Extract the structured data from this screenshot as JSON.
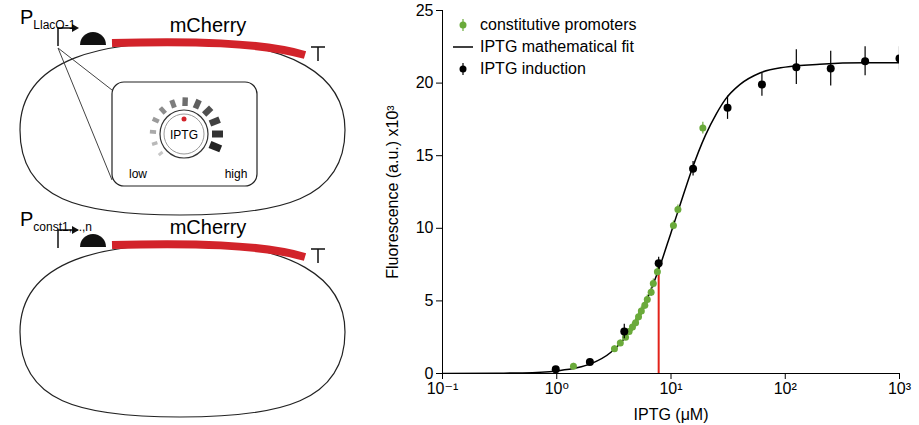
{
  "chart_data": {
    "type": "scatter",
    "x_label": "IPTG (μM)",
    "y_label": "Fluorescence (a.u.) x10³",
    "log": "x",
    "xlim": [
      0.1,
      1000
    ],
    "xticks": [
      {
        "value": 0.1,
        "label": "10⁻¹"
      },
      {
        "value": 1,
        "label": "10⁰"
      },
      {
        "value": 10,
        "label": "10¹"
      },
      {
        "value": 100,
        "label": "10²"
      },
      {
        "value": 1000,
        "label": "10³"
      }
    ],
    "ylim": [
      0,
      25
    ],
    "yticks": [
      0,
      5,
      10,
      15,
      20,
      25
    ],
    "legend": "top-left",
    "series": [
      {
        "name": "constitutive promoters",
        "type": "scatter",
        "marker": "circle",
        "color": "#6aaa3a",
        "x": [
          1.4,
          3.2,
          3.6,
          4.0,
          4.3,
          4.6,
          4.9,
          5.2,
          5.5,
          5.9,
          6.2,
          6.7,
          7.0,
          7.6,
          10.5,
          11.5,
          19
        ],
        "values": [
          0.5,
          1.7,
          2.1,
          2.5,
          2.9,
          3.2,
          3.5,
          3.9,
          4.3,
          4.7,
          5.1,
          5.6,
          6.2,
          7.0,
          10.2,
          11.3,
          16.9
        ],
        "errors": [
          0.2,
          0.2,
          0.2,
          0.2,
          0.2,
          0.3,
          0.3,
          0.3,
          0.3,
          0.3,
          0.3,
          0.3,
          0.3,
          0.3,
          0.3,
          0.3,
          0.4
        ]
      },
      {
        "name": "IPTG mathematical fit",
        "type": "line",
        "color": "#000000",
        "x": [
          0.1,
          0.3,
          0.5,
          1,
          1.5,
          2,
          3,
          4,
          5,
          6,
          7,
          8,
          10,
          12,
          15,
          20,
          25,
          30,
          40,
          60,
          100,
          200,
          500,
          1000
        ],
        "values": [
          0.0,
          0.02,
          0.04,
          0.18,
          0.39,
          0.68,
          1.48,
          2.5,
          3.66,
          4.9,
          6.17,
          7.4,
          9.7,
          11.6,
          13.9,
          16.4,
          17.9,
          18.9,
          19.9,
          20.7,
          21.1,
          21.3,
          21.4,
          21.4
        ]
      },
      {
        "name": "IPTG induction",
        "type": "scatter",
        "marker": "circle",
        "color": "#000000",
        "x": [
          0.98,
          1.95,
          3.9,
          7.8,
          15.6,
          31.25,
          62.5,
          125,
          250,
          500,
          1000
        ],
        "values": [
          0.3,
          0.8,
          2.9,
          7.6,
          14.1,
          18.3,
          19.9,
          21.1,
          21.0,
          21.5,
          21.7
        ],
        "errors": [
          0.1,
          0.2,
          0.5,
          0.4,
          0.5,
          0.8,
          0.8,
          1.2,
          1.2,
          1.0,
          0.8
        ]
      }
    ],
    "vline": {
      "x": 7.8,
      "y": 7.4,
      "color": "#e2231a"
    }
  },
  "diagram": {
    "top": {
      "promoter": "P",
      "promoter_sub": "LlacO-1",
      "gene": "mCherry",
      "gene_color": "#d2232a",
      "knob": {
        "label": "IPTG",
        "low": "low",
        "high": "high"
      }
    },
    "bottom": {
      "promoter": "P",
      "promoter_sub": "const1,...,n",
      "gene": "mCherry",
      "gene_color": "#d2232a"
    }
  }
}
